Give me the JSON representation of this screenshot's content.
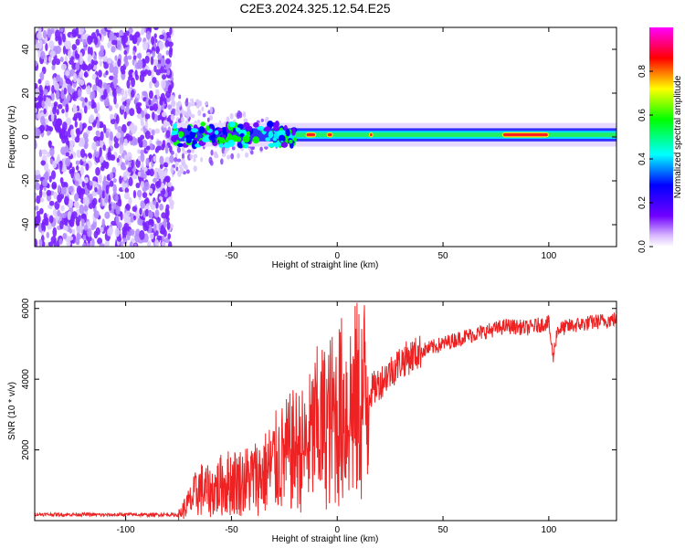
{
  "title": "C2E3.2024.325.12.54.E25",
  "chart_data": [
    {
      "type": "heatmap",
      "xlabel": "Height of straight line (km)",
      "ylabel": "Frequency (Hz)",
      "xlim": [
        -143,
        132
      ],
      "ylim": [
        -50,
        50
      ],
      "x_ticks": [
        -100,
        -50,
        0,
        50,
        100
      ],
      "x_tick_labels": [
        "-100",
        "-50",
        "0",
        "50",
        "100"
      ],
      "y_ticks": [
        -40,
        -20,
        0,
        20,
        40
      ],
      "y_tick_labels": [
        "-40",
        "-20",
        "0",
        "20",
        "40"
      ],
      "colorbar": {
        "label": "Normalized spectral amplitude",
        "range": [
          0,
          1
        ],
        "ticks": [
          0,
          0.2,
          0.4,
          0.6,
          0.8
        ],
        "tick_labels": [
          "0.0",
          "0.2",
          "0.4",
          "0.6",
          "0.8"
        ],
        "colors": [
          "#e0c8ff",
          "#7000ff",
          "#0000ff",
          "#00ffff",
          "#00ff00",
          "#ffff00",
          "#ff0000",
          "#ff00ff"
        ]
      },
      "signal_band": {
        "center_hz": 1,
        "half_width_hz": 3
      },
      "noise_region_x": [
        -143,
        -78
      ],
      "transition_region_x": [
        -78,
        -20
      ],
      "strong_segments_x": [
        [
          -15,
          -10
        ],
        [
          -5,
          -2
        ],
        [
          15,
          17
        ],
        [
          78,
          100
        ]
      ]
    },
    {
      "type": "line",
      "xlabel": "Height of straight line (km)",
      "ylabel": "SNR (10 * v/v)",
      "xlim": [
        -143,
        132
      ],
      "ylim": [
        0,
        6200
      ],
      "x_ticks": [
        -100,
        -50,
        0,
        50,
        100
      ],
      "x_tick_labels": [
        "-100",
        "-50",
        "0",
        "50",
        "100"
      ],
      "y_ticks": [
        2000,
        4000,
        6000
      ],
      "y_tick_labels": [
        "2000",
        "4000",
        "6000"
      ],
      "color": "#ee2222",
      "series": [
        {
          "x": [
            -143,
            -130,
            -120,
            -110,
            -100,
            -90,
            -80,
            -75,
            -70,
            -65,
            -60,
            -55,
            -50,
            -45,
            -40,
            -35,
            -30,
            -25,
            -20,
            -15,
            -10,
            -5,
            0,
            5,
            10,
            15,
            20,
            25,
            30,
            40,
            50,
            60,
            70,
            80,
            90,
            100,
            102,
            104,
            110,
            120,
            132
          ],
          "y": [
            180,
            170,
            175,
            160,
            170,
            165,
            170,
            160,
            500,
            900,
            800,
            1000,
            1100,
            1100,
            1200,
            1300,
            1600,
            1800,
            2000,
            2000,
            2600,
            2700,
            3000,
            3200,
            3300,
            3600,
            3900,
            4200,
            4500,
            4800,
            5000,
            5200,
            5350,
            5500,
            5450,
            5600,
            4600,
            5400,
            5500,
            5600,
            5700
          ]
        }
      ]
    }
  ]
}
